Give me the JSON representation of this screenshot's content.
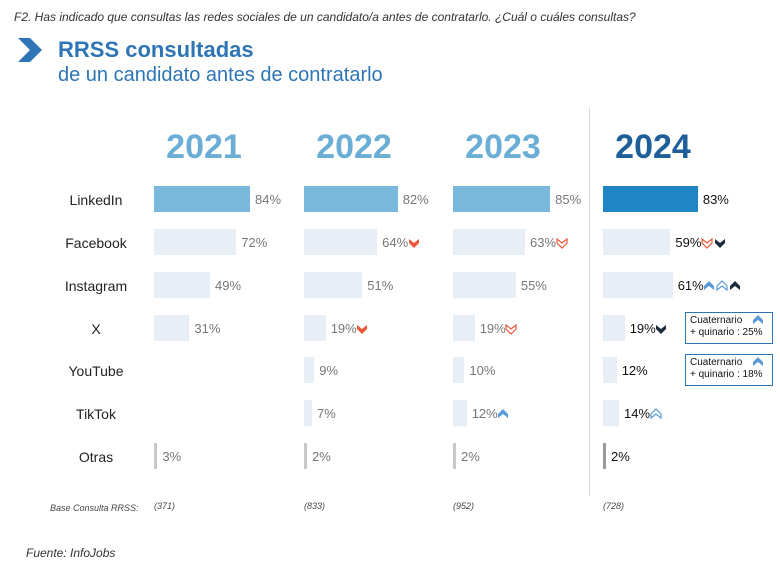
{
  "header": {
    "question": "F2. Has indicado que consultas las redes sociales de un candidato/a antes de contratarlo. ¿Cuál o cuáles consultas?",
    "title": "RRSS consultadas",
    "subtitle": "de un candidato antes de contratarlo"
  },
  "chart_data": {
    "type": "bar",
    "orientation": "horizontal",
    "title": "RRSS consultadas",
    "subtitle": "de un candidato antes de contratarlo",
    "categories": [
      "LinkedIn",
      "Facebook",
      "Instagram",
      "X",
      "YouTube",
      "TikTok",
      "Otras"
    ],
    "series": [
      {
        "name": "2021",
        "values": [
          84,
          72,
          49,
          31,
          null,
          null,
          3
        ],
        "labels": [
          "84%",
          "72%",
          "49%",
          "31%",
          "",
          "",
          "3%"
        ],
        "base": "(371)"
      },
      {
        "name": "2022",
        "values": [
          82,
          64,
          51,
          19,
          9,
          7,
          2
        ],
        "labels": [
          "82%",
          "64%",
          "51%",
          "19%",
          "9%",
          "7%",
          "2%"
        ],
        "base": "(833)"
      },
      {
        "name": "2023",
        "values": [
          85,
          63,
          55,
          19,
          10,
          12,
          2
        ],
        "labels": [
          "85%",
          "63%",
          "55%",
          "19%",
          "10%",
          "12%",
          "2%"
        ],
        "base": "(952)"
      },
      {
        "name": "2024",
        "values": [
          83,
          59,
          61,
          19,
          12,
          14,
          2
        ],
        "labels": [
          "83%",
          "59%",
          "61%",
          "19%",
          "12%",
          "14%",
          "2%"
        ],
        "base": "(728)"
      }
    ],
    "xlim": [
      0,
      100
    ],
    "trend_markers": [
      {
        "year": "2022",
        "category": "Facebook",
        "direction": "down",
        "style": "solid"
      },
      {
        "year": "2022",
        "category": "X",
        "direction": "down",
        "style": "solid"
      },
      {
        "year": "2023",
        "category": "Facebook",
        "direction": "down",
        "style": "outline"
      },
      {
        "year": "2023",
        "category": "X",
        "direction": "down",
        "style": "outline"
      },
      {
        "year": "2023",
        "category": "TikTok",
        "direction": "up",
        "style": "solid"
      },
      {
        "year": "2024",
        "category": "Facebook",
        "direction": "down",
        "style": "outline"
      },
      {
        "year": "2024",
        "category": "Facebook",
        "direction": "down",
        "style": "dark"
      },
      {
        "year": "2024",
        "category": "Instagram",
        "direction": "up",
        "style": "solid"
      },
      {
        "year": "2024",
        "category": "Instagram",
        "direction": "up",
        "style": "outline"
      },
      {
        "year": "2024",
        "category": "Instagram",
        "direction": "up",
        "style": "dark"
      },
      {
        "year": "2024",
        "category": "X",
        "direction": "down",
        "style": "dark"
      },
      {
        "year": "2024",
        "category": "TikTok",
        "direction": "up",
        "style": "outline"
      }
    ],
    "annotations": [
      {
        "category": "X",
        "year": "2024",
        "line1": "Cuaternario",
        "line2": "+ quinario : 25%"
      },
      {
        "category": "YouTube",
        "year": "2024",
        "line1": "Cuaternario",
        "line2": "+ quinario : 18%"
      }
    ],
    "colors": {
      "top_bar": "#7ab8de",
      "top_bar_current": "#1f85c4",
      "bar": "#e7eef6",
      "year_label": "#6aaed6",
      "year_label_current": "#1f5f99",
      "down_marker": "#e8583b",
      "up_marker": "#5b9bd5",
      "dark_marker": "#1b2b3c"
    },
    "base_label": "Base Consulta RRSS:"
  },
  "footer": {
    "source": "Fuente: InfoJobs"
  }
}
